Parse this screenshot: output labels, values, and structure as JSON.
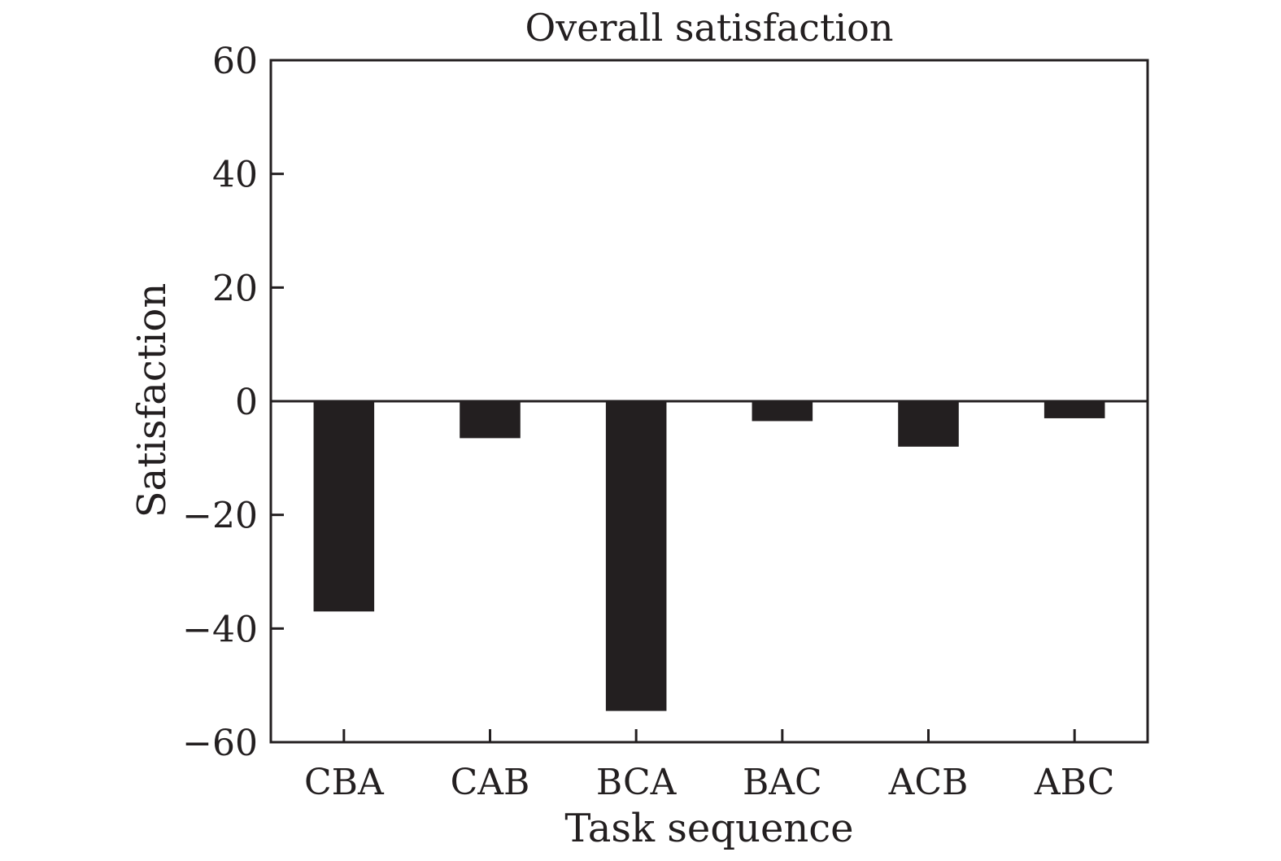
{
  "chart_data": {
    "type": "bar",
    "title": "Overall satisfaction",
    "xlabel": "Task sequence",
    "ylabel": "Satisfaction",
    "categories": [
      "CBA",
      "CAB",
      "BCA",
      "BAC",
      "ACB",
      "ABC"
    ],
    "values": [
      -37,
      -6.5,
      -54.5,
      -3.5,
      -8,
      -3
    ],
    "ylim": [
      -60,
      60
    ],
    "yticks": [
      60,
      40,
      20,
      0,
      -20,
      -40,
      -60
    ],
    "ytick_labels": [
      "60",
      "40",
      "20",
      "0",
      "−20",
      "−40",
      "−60"
    ],
    "grid": false,
    "bar_color": "#231f20",
    "axis_color": "#231f20"
  }
}
